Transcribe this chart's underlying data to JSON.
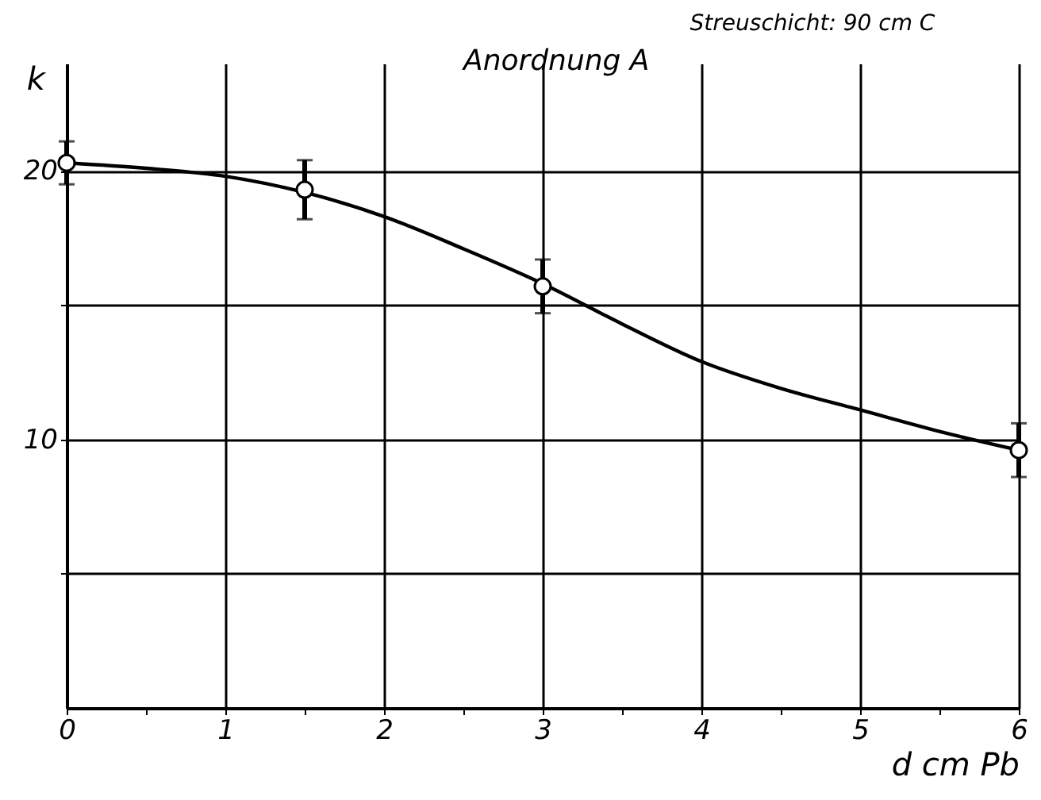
{
  "chart_data": {
    "type": "scatter",
    "title": "Anordnung A",
    "xlabel": "d   cm Pb",
    "ylabel": "k",
    "annotations": [
      "Streuschicht: 90 cm C"
    ],
    "xlim": [
      0,
      6
    ],
    "ylim": [
      0,
      24
    ],
    "xticks": [
      0,
      {
        "value": 0.5,
        "label": null
      },
      1,
      {
        "value": 1.5,
        "label": null
      },
      2,
      {
        "value": 2.5,
        "label": null
      },
      3,
      {
        "value": 3.5,
        "label": null
      },
      4,
      {
        "value": 4.5,
        "label": null
      },
      5,
      {
        "value": 5.5,
        "label": null
      },
      6
    ],
    "yticks": [
      {
        "value": 5,
        "label": null
      },
      10,
      {
        "value": 15,
        "label": null
      },
      20
    ],
    "grid": true,
    "series": [
      {
        "type": "line",
        "color": "#000000",
        "marker": "none",
        "line_style": "solid",
        "x": [
          0,
          0.5,
          1,
          1.5,
          2,
          2.5,
          3,
          3.5,
          4,
          4.5,
          5,
          5.5,
          6
        ],
        "values": [
          20.3,
          20.1,
          19.8,
          19.2,
          18.3,
          17.1,
          15.8,
          14.3,
          12.9,
          11.9,
          11.1,
          10.3,
          9.6
        ]
      },
      {
        "color": "#000000",
        "marker": "circle",
        "x": [
          0,
          1.5,
          3,
          6
        ],
        "values": [
          20.3,
          19.3,
          15.7,
          9.6
        ],
        "errors": [
          0.8,
          1.1,
          1,
          1
        ]
      }
    ]
  }
}
